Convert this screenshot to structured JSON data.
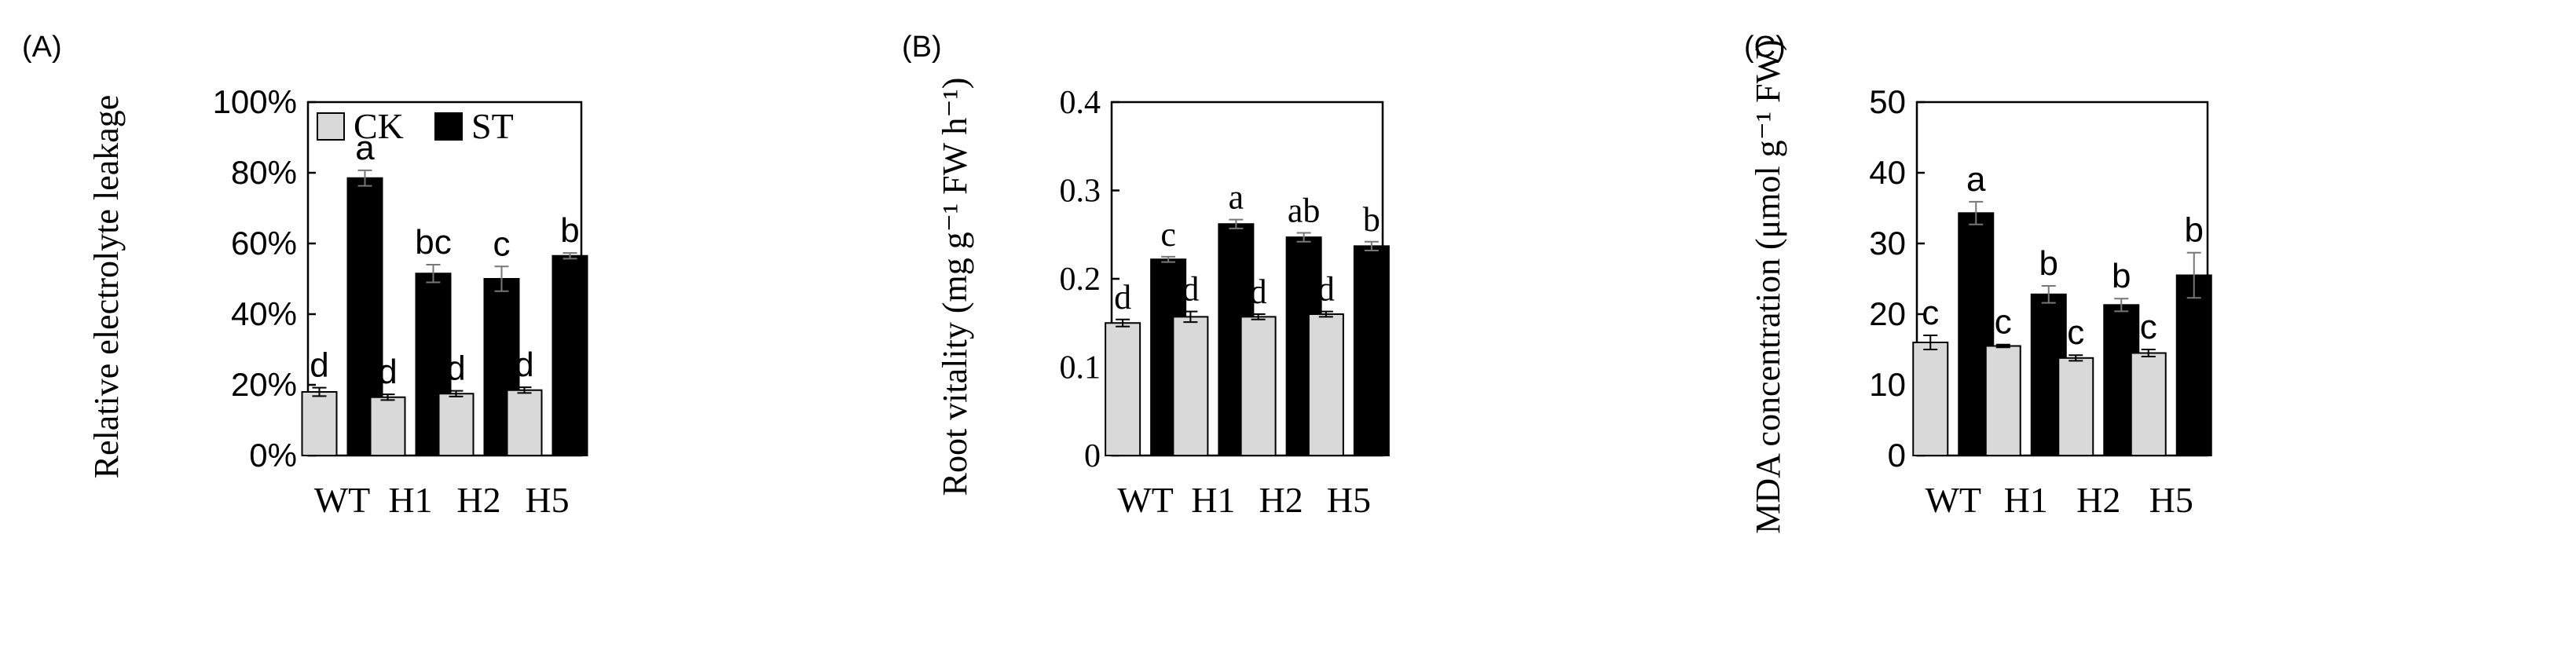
{
  "legend": {
    "ck_label": "CK",
    "st_label": "ST",
    "ck_color": "#d9d9d9",
    "st_color": "#000000"
  },
  "chart_data": [
    {
      "type": "bar",
      "panel_label": "(A)",
      "ylabel": "Relative electrolyte leakage",
      "categories": [
        "WT",
        "H1",
        "H2",
        "H5"
      ],
      "ylim": [
        0,
        100
      ],
      "yticks": [
        0,
        20,
        40,
        60,
        80,
        100
      ],
      "ytick_labels": [
        "0%",
        "20%",
        "40%",
        "60%",
        "80%",
        "100%"
      ],
      "legend_position": "top-left",
      "grid": false,
      "series": [
        {
          "name": "CK",
          "values": [
            18,
            16.5,
            17.5,
            18.5
          ],
          "errors": [
            1.2,
            0.8,
            0.8,
            0.8
          ],
          "letters": [
            "d",
            "d",
            "d",
            "d"
          ]
        },
        {
          "name": "ST",
          "values": [
            78.5,
            51.5,
            50,
            56.5
          ],
          "errors": [
            2.2,
            2.5,
            3.5,
            0.8
          ],
          "letters": [
            "a",
            "bc",
            "c",
            "b"
          ]
        }
      ]
    },
    {
      "type": "bar",
      "panel_label": "(B)",
      "ylabel": "Root vitality (mg g⁻¹ FW h⁻¹)",
      "categories": [
        "WT",
        "H1",
        "H2",
        "H5"
      ],
      "ylim": [
        0,
        0.4
      ],
      "yticks": [
        0,
        0.1,
        0.2,
        0.3,
        0.4
      ],
      "ytick_labels": [
        "0",
        "0.1",
        "0.2",
        "0.3",
        "0.4"
      ],
      "grid": false,
      "series": [
        {
          "name": "CK",
          "values": [
            0.15,
            0.157,
            0.157,
            0.16
          ],
          "errors": [
            0.004,
            0.006,
            0.003,
            0.003
          ],
          "letters": [
            "d",
            "d",
            "d",
            "d"
          ]
        },
        {
          "name": "ST",
          "values": [
            0.222,
            0.262,
            0.247,
            0.237
          ],
          "errors": [
            0.003,
            0.005,
            0.005,
            0.005
          ],
          "letters": [
            "c",
            "a",
            "ab",
            "b"
          ]
        }
      ]
    },
    {
      "type": "bar",
      "panel_label": "(C)",
      "ylabel": "MDA concentration (μmol g⁻¹ FW)",
      "categories": [
        "WT",
        "H1",
        "H2",
        "H5"
      ],
      "ylim": [
        0,
        50
      ],
      "yticks": [
        0,
        10,
        20,
        30,
        40,
        50
      ],
      "ytick_labels": [
        "0",
        "10",
        "20",
        "30",
        "40",
        "50"
      ],
      "grid": false,
      "series": [
        {
          "name": "CK",
          "values": [
            16,
            15.5,
            13.8,
            14.5
          ],
          "errors": [
            1.0,
            0.2,
            0.4,
            0.5
          ],
          "letters": [
            "c",
            "c",
            "c",
            "c"
          ]
        },
        {
          "name": "ST",
          "values": [
            34.3,
            22.8,
            21.3,
            25.5
          ],
          "errors": [
            1.6,
            1.2,
            0.9,
            3.2
          ],
          "letters": [
            "a",
            "b",
            "b",
            "b"
          ]
        }
      ]
    }
  ]
}
